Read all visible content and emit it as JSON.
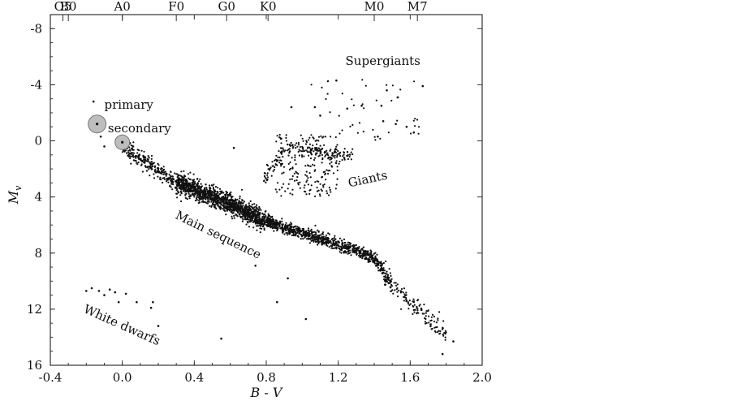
{
  "chart_data": {
    "type": "scatter",
    "title": "",
    "xlabel": "B - V",
    "ylabel": "M",
    "ylabel_subscript": "v",
    "xlim": [
      -0.4,
      2.0
    ],
    "ylim": [
      -9,
      16
    ],
    "y_inverted": true,
    "grid": false,
    "x_ticks": [
      -0.4,
      0.0,
      0.4,
      0.8,
      1.2,
      1.6,
      2.0
    ],
    "x_tick_labels": [
      "-0.4",
      "0.0",
      "0.4",
      "0.8",
      "1.2",
      "1.6",
      "2.0"
    ],
    "y_ticks": [
      -8,
      -4,
      0,
      4,
      8,
      12,
      16
    ],
    "y_tick_labels": [
      "-8",
      "-4",
      "0",
      "4",
      "8",
      "12",
      "16"
    ],
    "spectral_classes": [
      {
        "label": "O5",
        "x": -0.33
      },
      {
        "label": "B0",
        "x": -0.3
      },
      {
        "label": "A0",
        "x": 0.0
      },
      {
        "label": "F0",
        "x": 0.3
      },
      {
        "label": "G0",
        "x": 0.58
      },
      {
        "label": "K0",
        "x": 0.81
      },
      {
        "label": "M0",
        "x": 1.4
      },
      {
        "label": "M7",
        "x": 1.64
      }
    ],
    "annotations": [
      {
        "text": "Supergiants",
        "x": 1.24,
        "y": -5.4
      },
      {
        "text": "Giants",
        "x": 1.26,
        "y": 3.3,
        "rotation": -12
      },
      {
        "text": "Main sequence",
        "x": 0.29,
        "y": 5.5,
        "rotation": 26
      },
      {
        "text": "White dwarfs",
        "x": -0.22,
        "y": 12.2,
        "rotation": 24
      },
      {
        "text": "primary",
        "x": -0.1,
        "y": -2.3
      },
      {
        "text": "secondary",
        "x": -0.08,
        "y": -0.6
      }
    ],
    "highlighted": [
      {
        "name": "primary",
        "x": -0.14,
        "y": -1.2
      },
      {
        "name": "secondary",
        "x": 0.0,
        "y": 0.1
      }
    ],
    "regions": {
      "main_sequence": [
        [
          -0.12,
          -1.3
        ],
        [
          0.0,
          0.3
        ],
        [
          0.1,
          1.3
        ],
        [
          0.2,
          2.2
        ],
        [
          0.3,
          3.0
        ],
        [
          0.4,
          3.4
        ],
        [
          0.5,
          4.0
        ],
        [
          0.6,
          4.5
        ],
        [
          0.7,
          5.2
        ],
        [
          0.8,
          5.7
        ],
        [
          0.9,
          6.2
        ],
        [
          1.0,
          6.6
        ],
        [
          1.1,
          7.0
        ],
        [
          1.2,
          7.4
        ],
        [
          1.3,
          7.8
        ],
        [
          1.4,
          8.4
        ],
        [
          1.45,
          9.2
        ],
        [
          1.5,
          10.3
        ],
        [
          1.55,
          11.0
        ],
        [
          1.6,
          11.6
        ],
        [
          1.7,
          12.6
        ],
        [
          1.8,
          13.6
        ]
      ],
      "giants_branch": [
        [
          0.75,
          3.5
        ],
        [
          0.8,
          2.5
        ],
        [
          0.85,
          1.5
        ],
        [
          0.9,
          0.7
        ],
        [
          1.0,
          0.5
        ],
        [
          1.1,
          0.8
        ],
        [
          1.2,
          1.1
        ],
        [
          1.3,
          1.0
        ]
      ],
      "giants_cloud": {
        "x": [
          0.85,
          1.2
        ],
        "y": [
          -0.5,
          4.0
        ]
      },
      "supergiants": {
        "x": [
          1.05,
          1.65
        ],
        "y": [
          -4.5,
          0.0
        ]
      },
      "white_dwarfs": {
        "x": [
          -0.22,
          0.2
        ],
        "y": [
          10.4,
          13.2
        ]
      }
    },
    "sparse_points": [
      [
        -0.2,
        10.7
      ],
      [
        -0.17,
        10.5
      ],
      [
        -0.13,
        10.7
      ],
      [
        -0.1,
        11.0
      ],
      [
        -0.07,
        10.6
      ],
      [
        -0.04,
        10.8
      ],
      [
        -0.02,
        11.5
      ],
      [
        0.02,
        10.9
      ],
      [
        0.08,
        11.5
      ],
      [
        0.16,
        11.9
      ],
      [
        0.17,
        11.5
      ],
      [
        0.2,
        13.2
      ],
      [
        -0.16,
        -2.8
      ],
      [
        -0.12,
        -0.3
      ],
      [
        -0.1,
        0.4
      ],
      [
        0.06,
        0.4
      ],
      [
        0.62,
        0.5
      ],
      [
        0.74,
        8.9
      ],
      [
        0.86,
        11.5
      ],
      [
        0.92,
        9.8
      ],
      [
        1.02,
        12.7
      ],
      [
        0.55,
        14.1
      ],
      [
        1.84,
        14.3
      ],
      [
        1.78,
        15.2
      ],
      [
        1.19,
        -4.3
      ],
      [
        1.47,
        -3.6
      ],
      [
        1.53,
        -3.1
      ],
      [
        1.67,
        -3.9
      ],
      [
        1.07,
        -2.4
      ],
      [
        1.25,
        -2.3
      ],
      [
        1.33,
        -2.5
      ],
      [
        1.44,
        -2.5
      ],
      [
        0.94,
        -2.4
      ],
      [
        1.1,
        -1.8
      ],
      [
        1.45,
        -1.4
      ],
      [
        1.52,
        -1.2
      ],
      [
        1.58,
        -1.0
      ],
      [
        1.62,
        -0.6
      ],
      [
        1.42,
        -0.3
      ]
    ]
  }
}
